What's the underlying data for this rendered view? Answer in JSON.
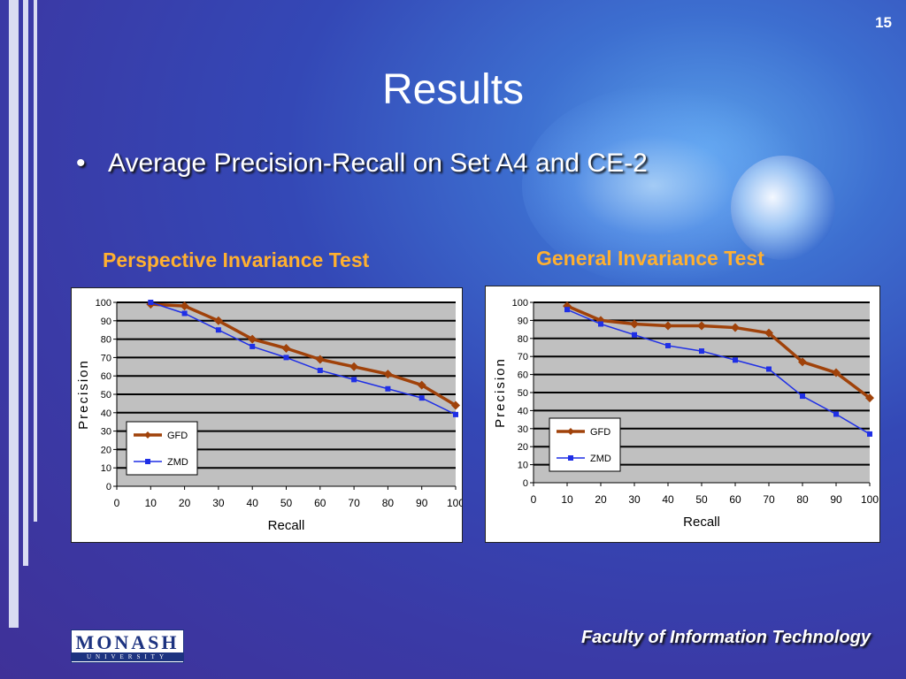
{
  "slide": {
    "number": "15",
    "title": "Results",
    "bullet": "Average Precision-Recall on Set A4 and CE-2",
    "footer": "Faculty of Information Technology",
    "logo": {
      "main": "MONASH",
      "sub": "UNIVERSITY"
    }
  },
  "colors": {
    "title_orange": "#ffb030",
    "gfd": "#a0420a",
    "zmd": "#1f2fe6",
    "plot_bg": "#c0c0c0"
  },
  "chart_data": [
    {
      "type": "line",
      "title": "Perspective Invariance Test",
      "xlabel": "Recall",
      "ylabel": "Precision",
      "xlim": [
        0,
        100
      ],
      "ylim": [
        0,
        100
      ],
      "xticks": [
        "0",
        "10",
        "20",
        "30",
        "40",
        "50",
        "60",
        "70",
        "80",
        "90",
        "100"
      ],
      "yticks": [
        "0",
        "10",
        "20",
        "30",
        "40",
        "50",
        "60",
        "70",
        "80",
        "90",
        "100"
      ],
      "legend": "bottom-left",
      "x": [
        10,
        20,
        30,
        40,
        50,
        60,
        70,
        80,
        90,
        100
      ],
      "series": [
        {
          "name": "GFD",
          "values": [
            99,
            98,
            90,
            80,
            75,
            69,
            65,
            61,
            55,
            44
          ]
        },
        {
          "name": "ZMD",
          "values": [
            100,
            94,
            85,
            76,
            70,
            63,
            58,
            53,
            48,
            39
          ]
        }
      ]
    },
    {
      "type": "line",
      "title": "General Invariance Test",
      "xlabel": "Recall",
      "ylabel": "Precision",
      "xlim": [
        0,
        100
      ],
      "ylim": [
        0,
        100
      ],
      "xticks": [
        "0",
        "10",
        "20",
        "30",
        "40",
        "50",
        "60",
        "70",
        "80",
        "90",
        "100"
      ],
      "yticks": [
        "0",
        "10",
        "20",
        "30",
        "40",
        "50",
        "60",
        "70",
        "80",
        "90",
        "100"
      ],
      "legend": "bottom-left",
      "x": [
        10,
        20,
        30,
        40,
        50,
        60,
        70,
        80,
        90,
        100
      ],
      "series": [
        {
          "name": "GFD",
          "values": [
            98,
            90,
            88,
            87,
            87,
            86,
            83,
            67,
            61,
            47
          ]
        },
        {
          "name": "ZMD",
          "values": [
            96,
            88,
            82,
            76,
            73,
            68,
            63,
            48,
            38,
            27
          ]
        }
      ]
    }
  ]
}
